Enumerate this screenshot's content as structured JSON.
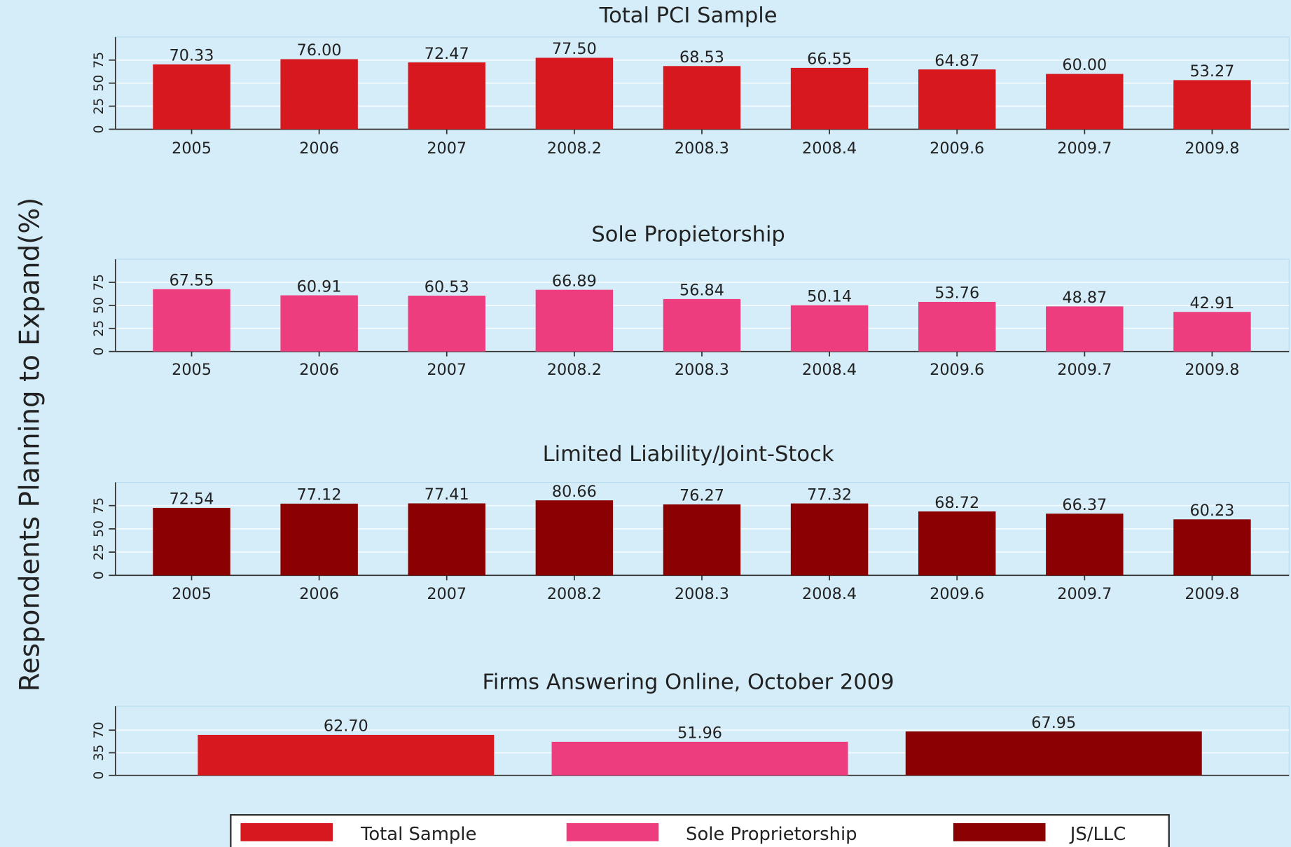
{
  "ylabel": "Respondents Planning to Expand(%)",
  "legend": [
    {
      "name": "Total Sample",
      "color": "#d7191f"
    },
    {
      "name": "Sole Proprietorship",
      "color": "#ee3d7f"
    },
    {
      "name": "JS/LLC",
      "color": "#8b0000"
    }
  ],
  "chart_data": [
    {
      "type": "bar",
      "title": "Total PCI Sample",
      "color": "#d7191f",
      "categories": [
        "2005",
        "2006",
        "2007",
        "2008.2",
        "2008.3",
        "2008.4",
        "2009.6",
        "2009.7",
        "2009.8"
      ],
      "values": [
        70.33,
        76,
        72.47,
        77.5,
        68.53,
        66.55,
        64.87,
        60,
        53.27
      ],
      "value_labels": [
        "70.33",
        "76.00",
        "72.47",
        "77.50",
        "68.53",
        "66.55",
        "64.87",
        "60.00",
        "53.27"
      ],
      "ylim": [
        0,
        100
      ],
      "yticks": [
        0,
        25,
        50,
        75
      ],
      "grid": true
    },
    {
      "type": "bar",
      "title": "Sole Propietorship",
      "color": "#ee3d7f",
      "categories": [
        "2005",
        "2006",
        "2007",
        "2008.2",
        "2008.3",
        "2008.4",
        "2009.6",
        "2009.7",
        "2009.8"
      ],
      "values": [
        67.55,
        60.91,
        60.53,
        66.89,
        56.84,
        50.14,
        53.76,
        48.87,
        42.91
      ],
      "value_labels": [
        "67.55",
        "60.91",
        "60.53",
        "66.89",
        "56.84",
        "50.14",
        "53.76",
        "48.87",
        "42.91"
      ],
      "ylim": [
        0,
        100
      ],
      "yticks": [
        0,
        25,
        50,
        75
      ],
      "grid": true
    },
    {
      "type": "bar",
      "title": "Limited Liability/Joint-Stock",
      "color": "#8b0000",
      "categories": [
        "2005",
        "2006",
        "2007",
        "2008.2",
        "2008.3",
        "2008.4",
        "2009.6",
        "2009.7",
        "2009.8"
      ],
      "values": [
        72.54,
        77.12,
        77.41,
        80.66,
        76.27,
        77.32,
        68.72,
        66.37,
        60.23
      ],
      "value_labels": [
        "72.54",
        "77.12",
        "77.41",
        "80.66",
        "76.27",
        "77.32",
        "68.72",
        "66.37",
        "60.23"
      ],
      "ylim": [
        0,
        100
      ],
      "yticks": [
        0,
        25,
        50,
        75
      ],
      "grid": true
    },
    {
      "type": "bar",
      "title": "Firms Answering Online, October 2009",
      "colors": [
        "#d7191f",
        "#ee3d7f",
        "#8b0000"
      ],
      "categories": [
        null,
        null,
        null
      ],
      "values": [
        62.7,
        51.96,
        67.95
      ],
      "value_labels": [
        "62.70",
        "51.96",
        "67.95"
      ],
      "ylim": [
        0,
        107
      ],
      "yticks": [
        0,
        35,
        70
      ],
      "grid": true
    }
  ]
}
